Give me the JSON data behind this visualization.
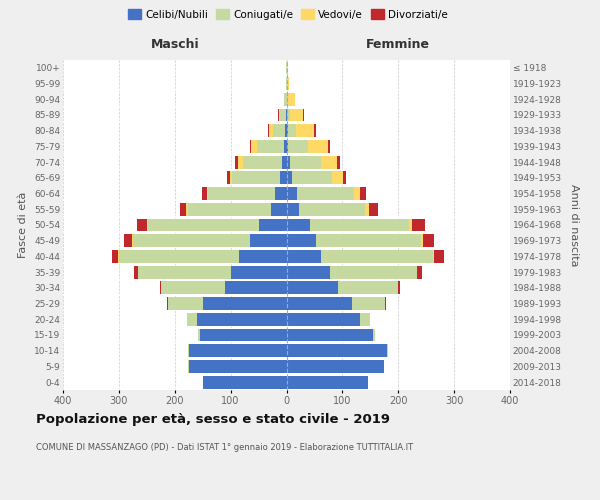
{
  "age_groups": [
    "100+",
    "95-99",
    "90-94",
    "85-89",
    "80-84",
    "75-79",
    "70-74",
    "65-69",
    "60-64",
    "55-59",
    "50-54",
    "45-49",
    "40-44",
    "35-39",
    "30-34",
    "25-29",
    "20-24",
    "15-19",
    "10-14",
    "5-9",
    "0-4"
  ],
  "birth_years": [
    "≤ 1918",
    "1919-1923",
    "1924-1928",
    "1929-1933",
    "1934-1938",
    "1939-1943",
    "1944-1948",
    "1949-1953",
    "1954-1958",
    "1959-1963",
    "1964-1968",
    "1969-1973",
    "1974-1978",
    "1979-1983",
    "1984-1988",
    "1989-1993",
    "1994-1998",
    "1999-2003",
    "2004-2008",
    "2009-2013",
    "2014-2018"
  ],
  "maschi_celibi": [
    0,
    0,
    0,
    1,
    2,
    4,
    8,
    12,
    20,
    28,
    50,
    65,
    85,
    100,
    110,
    150,
    160,
    155,
    175,
    175,
    150
  ],
  "maschi_coniugati": [
    1,
    1,
    4,
    10,
    22,
    48,
    70,
    85,
    120,
    148,
    198,
    210,
    215,
    165,
    115,
    62,
    18,
    4,
    2,
    1,
    0
  ],
  "maschi_vedovi": [
    0,
    0,
    1,
    3,
    8,
    12,
    9,
    5,
    3,
    3,
    2,
    1,
    1,
    0,
    0,
    0,
    0,
    0,
    0,
    0,
    0
  ],
  "maschi_divorziati": [
    0,
    0,
    0,
    1,
    2,
    2,
    5,
    4,
    8,
    12,
    18,
    14,
    12,
    8,
    2,
    2,
    0,
    0,
    0,
    0,
    0
  ],
  "femmine_nubili": [
    0,
    0,
    1,
    1,
    2,
    3,
    6,
    10,
    18,
    22,
    42,
    52,
    62,
    78,
    92,
    118,
    132,
    155,
    180,
    175,
    145
  ],
  "femmine_coniugate": [
    0,
    1,
    2,
    6,
    15,
    35,
    55,
    72,
    102,
    118,
    178,
    188,
    200,
    155,
    108,
    58,
    17,
    4,
    2,
    0,
    0
  ],
  "femmine_vedove": [
    1,
    4,
    12,
    22,
    32,
    36,
    30,
    20,
    12,
    8,
    5,
    4,
    2,
    1,
    0,
    0,
    0,
    0,
    0,
    0,
    0
  ],
  "femmine_divorziate": [
    0,
    0,
    1,
    2,
    3,
    4,
    5,
    5,
    10,
    15,
    22,
    20,
    18,
    8,
    4,
    2,
    0,
    0,
    0,
    0,
    0
  ],
  "color_celibi": "#4472C4",
  "color_coniugati": "#C5D9A0",
  "color_vedovi": "#FFD966",
  "color_divorziati": "#C0282D",
  "legend_labels": [
    "Celibi/Nubili",
    "Coniugati/e",
    "Vedovi/e",
    "Divorziati/e"
  ],
  "title": "Popolazione per età, sesso e stato civile - 2019",
  "subtitle": "COMUNE DI MASSANZAGO (PD) - Dati ISTAT 1° gennaio 2019 - Elaborazione TUTTITALIA.IT",
  "label_maschi": "Maschi",
  "label_femmine": "Femmine",
  "label_fasce": "Fasce di età",
  "label_anni": "Anni di nascita",
  "xlim": 400,
  "bg_color": "#efefef",
  "plot_bg": "#ffffff",
  "bar_height": 0.82
}
